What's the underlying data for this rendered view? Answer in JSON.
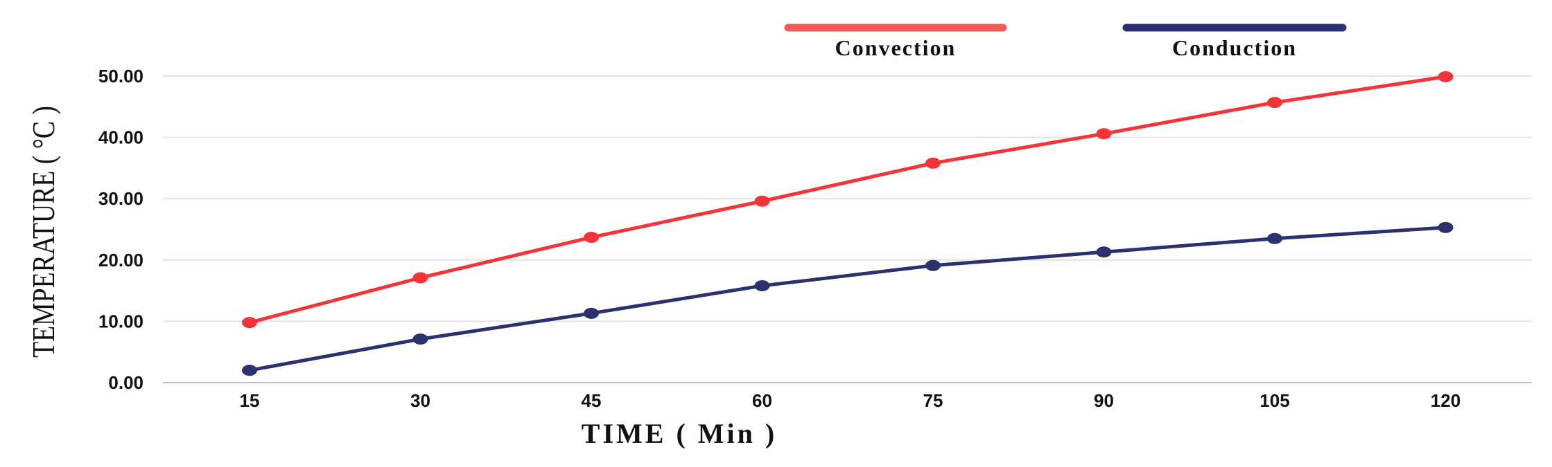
{
  "chart_data": {
    "type": "line",
    "x": [
      "15",
      "30",
      "45",
      "60",
      "75",
      "90",
      "105",
      "120"
    ],
    "xlabel": "TIME ( Min )",
    "ylabel": "TEMPERATURE ( °C )",
    "ylim": [
      0,
      50
    ],
    "yticks": [
      "0.00",
      "10.00",
      "20.00",
      "30.00",
      "40.00",
      "50.00"
    ],
    "grid": "horizontal",
    "legend_position": "top-center",
    "series": [
      {
        "name": "Convection",
        "color": "#f43438",
        "legend_color": "#f45a5c",
        "values": [
          9.8,
          17.1,
          23.7,
          29.6,
          35.8,
          40.6,
          45.7,
          49.9
        ]
      },
      {
        "name": "Conduction",
        "color": "#2b306e",
        "legend_color": "#2b306e",
        "values": [
          2.0,
          7.1,
          11.3,
          15.8,
          19.1,
          21.3,
          23.5,
          25.3
        ]
      }
    ]
  }
}
